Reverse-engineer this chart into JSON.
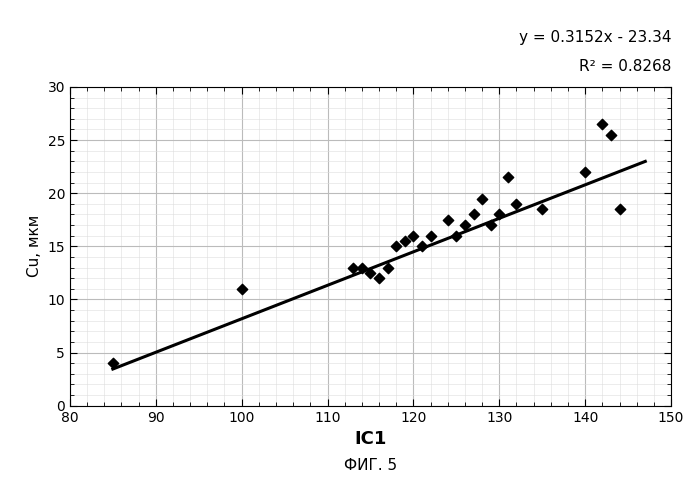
{
  "scatter_x": [
    85,
    100,
    113,
    114,
    115,
    116,
    117,
    118,
    119,
    120,
    121,
    122,
    124,
    125,
    126,
    127,
    128,
    129,
    130,
    131,
    132,
    135,
    140,
    142,
    143,
    144
  ],
  "scatter_y": [
    4,
    11,
    13,
    13,
    12.5,
    12,
    13,
    15,
    15.5,
    16,
    15,
    16,
    17.5,
    16,
    17,
    18,
    19.5,
    17,
    18,
    21.5,
    19,
    18.5,
    22,
    26.5,
    25.5,
    18.5
  ],
  "slope": 0.3152,
  "intercept": -23.34,
  "x_line_start": 85,
  "x_line_end": 147,
  "xlim": [
    80,
    150
  ],
  "ylim": [
    0,
    30
  ],
  "xticks": [
    80,
    90,
    100,
    110,
    120,
    130,
    140,
    150
  ],
  "yticks": [
    0,
    5,
    10,
    15,
    20,
    25,
    30
  ],
  "xlabel": "IC1",
  "ylabel": "Cu, мкм",
  "equation_text": "y = 0.3152x - 23.34",
  "r2_text": "R² = 0.8268",
  "fig_label": "ФИГ. 5",
  "marker_color": "#000000",
  "line_color": "#000000",
  "grid_major_color": "#bbbbbb",
  "grid_minor_color": "#dddddd",
  "bg_color": "#ffffff"
}
